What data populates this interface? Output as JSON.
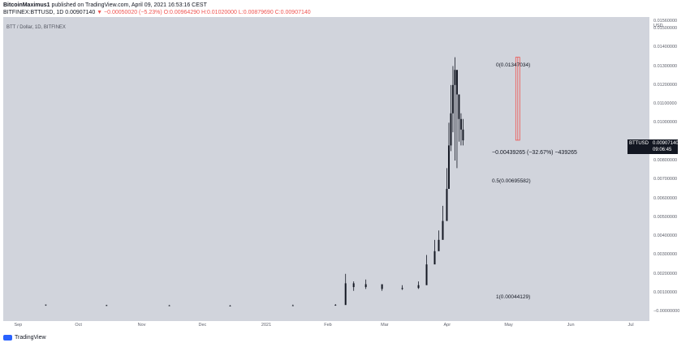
{
  "header": {
    "author": "BitcoinMaximus1",
    "published": " published on TradingView.com, April 09, 2021 16:53:16 CEST",
    "symbol_line": "BITFINEX:BTTUSD, 1D 0.00907140",
    "change": "▼ −0.00050020 (−5.23%)",
    "o": "O:0.00964290",
    "h": "H:0.01020000",
    "l": "L:0.00879690",
    "c": "C:0.00907140"
  },
  "legend": "BTT / Dollar, 1D, BITFINEX",
  "price_axis_unit_1": "0.01560000",
  "price_axis_unit_2": "USD",
  "price_ticks": [
    "0.01500000",
    "0.01400000",
    "0.01300000",
    "0.01200000",
    "0.01100000",
    "0.01000000",
    "0.00800000",
    "0.00700000",
    "0.00600000",
    "0.00500000",
    "0.00400000",
    "0.00300000",
    "0.00200000",
    "0.00100000",
    "−0.00000000"
  ],
  "time_ticks": [
    "Sep",
    "Oct",
    "Nov",
    "Dec",
    "2021",
    "Feb",
    "Mar",
    "Apr",
    "May",
    "Jun",
    "Jul"
  ],
  "last_price": {
    "symbol": "BTTUSD",
    "price": "0.00907140",
    "countdown": "09:06:45"
  },
  "fib": {
    "level0": "0(0.01347034)",
    "level05": "0.5(0.00695582)",
    "level1": "1(0.00044129)"
  },
  "measure": "−0.00439265 (−32.67%) −439265",
  "footer": "TradingView",
  "colors": {
    "plot_bg": "#d1d4dc",
    "candle": "#131722",
    "measure": "#ef5350",
    "down": "#ef5350"
  },
  "chart_data": {
    "type": "candlestick",
    "title": "BTT / Dollar, 1D, BITFINEX",
    "ylabel": "USD",
    "ylim": [
      -0.0005,
      0.0156
    ],
    "xlim": [
      "2020-08-25",
      "2021-07-10"
    ],
    "series": [
      {
        "x": [
          "2020-08-25",
          "2020-09-15",
          "2020-10-15",
          "2020-11-15",
          "2020-12-15",
          "2021-01-15",
          "2021-02-05",
          "2021-02-10",
          "2021-02-14",
          "2021-02-20",
          "2021-02-28",
          "2021-03-10",
          "2021-03-18",
          "2021-03-22",
          "2021-03-26",
          "2021-03-28",
          "2021-03-30",
          "2021-04-01",
          "2021-04-02",
          "2021-04-03",
          "2021-04-04",
          "2021-04-05",
          "2021-04-06",
          "2021-04-07",
          "2021-04-08",
          "2021-04-09"
        ],
        "close": [
          0.00037,
          0.00034,
          0.00033,
          0.00032,
          0.00031,
          0.00033,
          0.00035,
          0.0015,
          0.0013,
          0.00145,
          0.0012,
          0.00125,
          0.0014,
          0.0025,
          0.0032,
          0.0038,
          0.0048,
          0.0065,
          0.0088,
          0.0105,
          0.012,
          0.0128,
          0.0115,
          0.0102,
          0.00964,
          0.00907
        ],
        "high": [
          0.0004,
          0.00037,
          0.00036,
          0.00035,
          0.00034,
          0.00037,
          0.0004,
          0.002,
          0.0016,
          0.0017,
          0.0014,
          0.0014,
          0.0016,
          0.003,
          0.0038,
          0.0043,
          0.0056,
          0.0076,
          0.01,
          0.012,
          0.013,
          0.01347,
          0.0125,
          0.011,
          0.0105,
          0.0102
        ],
        "low": [
          0.00033,
          0.00031,
          0.0003,
          0.00029,
          0.00028,
          0.0003,
          0.00031,
          0.0011,
          0.0011,
          0.0012,
          0.0011,
          0.00115,
          0.0012,
          0.002,
          0.0028,
          0.0034,
          0.0042,
          0.0056,
          0.007,
          0.0085,
          0.0095,
          0.008,
          0.0076,
          0.009,
          0.0088,
          0.0088
        ]
      }
    ],
    "fib_levels": [
      {
        "level": 0,
        "price": 0.01347034
      },
      {
        "level": 0.5,
        "price": 0.00695582
      },
      {
        "level": 1,
        "price": 0.00044129
      }
    ],
    "measure": {
      "from": 0.01347034,
      "to": 0.00907769,
      "change": -0.00439265,
      "percent": -32.67
    }
  }
}
